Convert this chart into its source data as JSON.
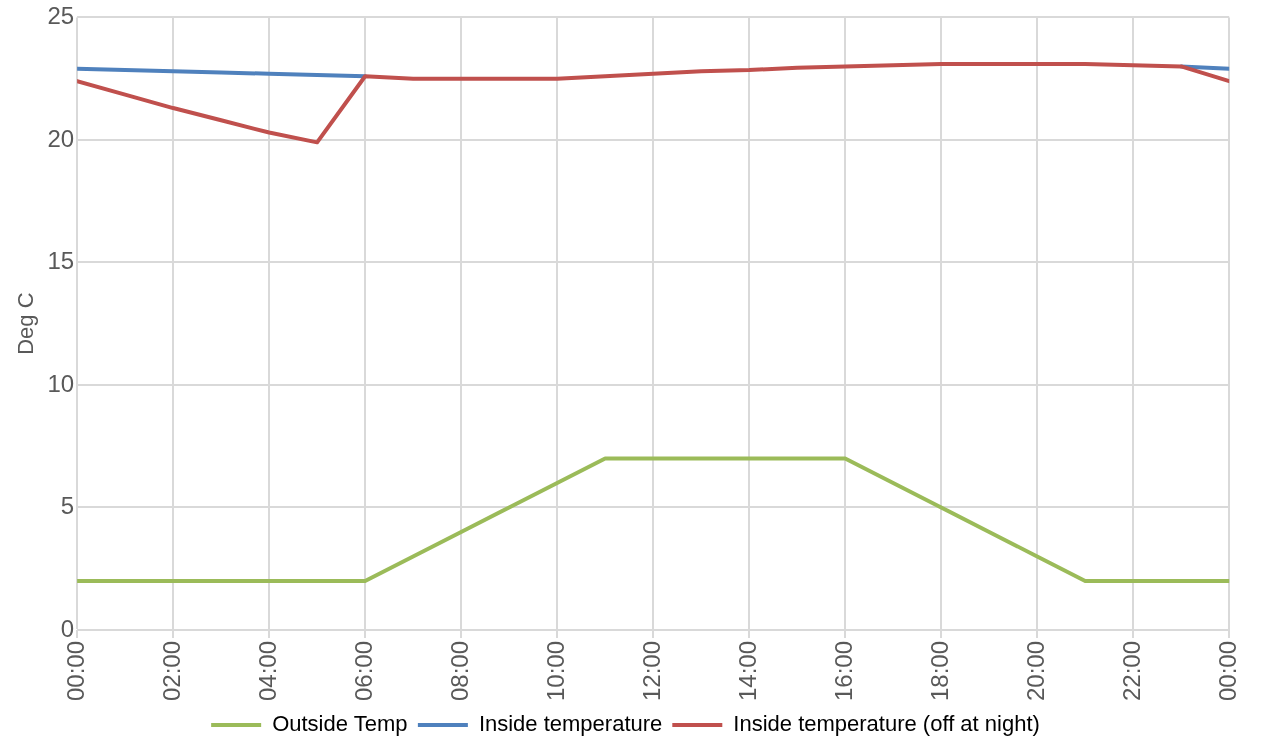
{
  "chart_data": {
    "type": "line",
    "ylabel": "Deg C",
    "x": [
      0,
      1,
      2,
      3,
      4,
      5,
      6,
      7,
      8,
      9,
      10,
      11,
      12,
      13,
      14,
      15,
      16,
      17,
      18,
      19,
      20,
      21,
      22,
      23,
      24
    ],
    "series": [
      {
        "name": "Outside Temp",
        "color": "#9bbb59",
        "values": [
          2,
          2,
          2,
          2,
          2,
          2,
          2,
          3,
          4,
          5,
          6,
          7,
          7,
          7,
          7,
          7,
          7,
          6,
          5,
          4,
          3,
          2,
          2,
          2,
          2
        ]
      },
      {
        "name": "Inside temperature",
        "color": "#4f81bd",
        "values": [
          22.9,
          22.85,
          22.8,
          22.75,
          22.7,
          22.65,
          22.6,
          null,
          null,
          null,
          null,
          null,
          null,
          null,
          null,
          null,
          null,
          null,
          null,
          null,
          null,
          null,
          null,
          23,
          22.9
        ]
      },
      {
        "name": "Inside temperature (off at night)",
        "color": "#c0504d",
        "values": [
          22.4,
          21.85,
          21.3,
          20.8,
          20.3,
          19.9,
          22.6,
          22.5,
          22.5,
          22.5,
          22.5,
          22.6,
          22.7,
          22.8,
          22.85,
          22.95,
          23,
          23.05,
          23.1,
          23.1,
          23.1,
          23.1,
          23.05,
          23,
          22.4
        ]
      }
    ],
    "xlim": [
      0,
      24
    ],
    "xticks": [
      {
        "value": 0,
        "label": "00:00"
      },
      {
        "value": 2,
        "label": "02:00"
      },
      {
        "value": 4,
        "label": "04:00"
      },
      {
        "value": 6,
        "label": "06:00"
      },
      {
        "value": 8,
        "label": "08:00"
      },
      {
        "value": 10,
        "label": "10:00"
      },
      {
        "value": 12,
        "label": "12:00"
      },
      {
        "value": 14,
        "label": "14:00"
      },
      {
        "value": 16,
        "label": "16:00"
      },
      {
        "value": 18,
        "label": "18:00"
      },
      {
        "value": 20,
        "label": "20:00"
      },
      {
        "value": 22,
        "label": "22:00"
      },
      {
        "value": 24,
        "label": "00:00"
      }
    ],
    "ylim": [
      0,
      25
    ],
    "yticks": [
      0,
      5,
      10,
      15,
      20,
      25
    ],
    "grid": true,
    "legend": "bottom",
    "marker": "none",
    "line_style": "solid"
  }
}
